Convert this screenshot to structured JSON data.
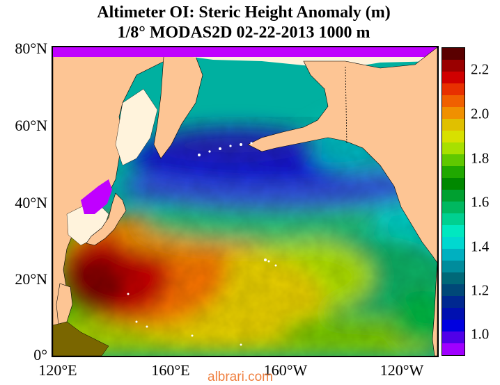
{
  "title": {
    "line1": "Altimeter OI: Steric Height Anomaly (m)",
    "line2": "1/8° MODAS2D 02-22-2013 1000 m"
  },
  "map": {
    "lat_labels": [
      "80°N",
      "60°N",
      "40°N",
      "20°N",
      "0°"
    ],
    "lon_labels": [
      "120°E",
      "160°E",
      "160°W",
      "120°W"
    ],
    "land_color": "#fdc594",
    "ice_color": "#fff3dc",
    "nodata_color": "#c000ff"
  },
  "colorbar": {
    "labels": [
      "2.2",
      "2.0",
      "1.8",
      "1.6",
      "1.4",
      "1.2",
      "1.0"
    ],
    "colors_top_to_bottom": [
      "#5a0000",
      "#9a0000",
      "#d00000",
      "#e83000",
      "#f06000",
      "#f09000",
      "#e0c000",
      "#d8e000",
      "#a8e000",
      "#60c800",
      "#20a800",
      "#008800",
      "#00a030",
      "#00b860",
      "#00d090",
      "#00e8c0",
      "#00d8d0",
      "#00b0c0",
      "#008c9c",
      "#006878",
      "#004878",
      "#002890",
      "#0010b0",
      "#0000e0",
      "#5000e8",
      "#a000ff"
    ]
  },
  "watermark": "albrari.com"
}
